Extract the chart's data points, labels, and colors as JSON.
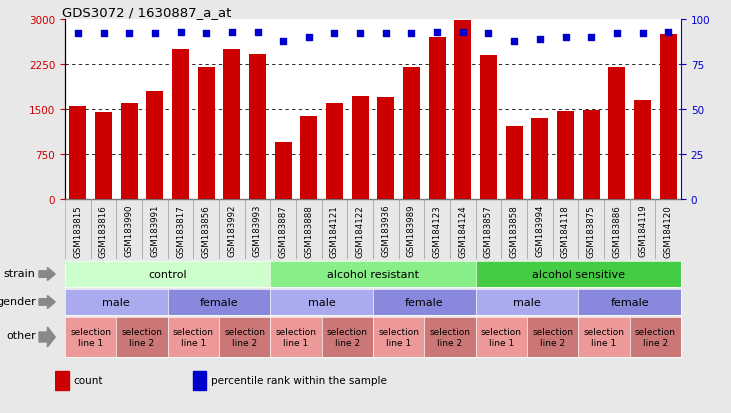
{
  "title": "GDS3072 / 1630887_a_at",
  "samples": [
    "GSM183815",
    "GSM183816",
    "GSM183990",
    "GSM183991",
    "GSM183817",
    "GSM183856",
    "GSM183992",
    "GSM183993",
    "GSM183887",
    "GSM183888",
    "GSM184121",
    "GSM184122",
    "GSM183936",
    "GSM183989",
    "GSM184123",
    "GSM184124",
    "GSM183857",
    "GSM183858",
    "GSM183994",
    "GSM184118",
    "GSM183875",
    "GSM183886",
    "GSM184119",
    "GSM184120"
  ],
  "bar_values": [
    1550,
    1450,
    1600,
    1800,
    2500,
    2200,
    2500,
    2420,
    950,
    1380,
    1600,
    1720,
    1700,
    2200,
    2700,
    2980,
    2400,
    1220,
    1350,
    1470,
    1480,
    2200,
    1650,
    2750
  ],
  "percentile_values": [
    92,
    92,
    92,
    92,
    93,
    92,
    93,
    93,
    88,
    90,
    92,
    92,
    92,
    92,
    93,
    93,
    92,
    88,
    89,
    90,
    90,
    92,
    92,
    93
  ],
  "bar_color": "#cc0000",
  "percentile_color": "#0000cc",
  "ylim_left": [
    0,
    3000
  ],
  "ylim_right": [
    0,
    100
  ],
  "yticks_left": [
    0,
    750,
    1500,
    2250,
    3000
  ],
  "yticks_right": [
    0,
    25,
    50,
    75,
    100
  ],
  "grid_lines": [
    750,
    1500,
    2250
  ],
  "strain_groups": [
    {
      "label": "control",
      "start": 0,
      "end": 8,
      "color": "#ccffcc"
    },
    {
      "label": "alcohol resistant",
      "start": 8,
      "end": 16,
      "color": "#88ee88"
    },
    {
      "label": "alcohol sensitive",
      "start": 16,
      "end": 24,
      "color": "#44cc44"
    }
  ],
  "gender_groups": [
    {
      "label": "male",
      "start": 0,
      "end": 4,
      "color": "#aaaaee"
    },
    {
      "label": "female",
      "start": 4,
      "end": 8,
      "color": "#8888dd"
    },
    {
      "label": "male",
      "start": 8,
      "end": 12,
      "color": "#aaaaee"
    },
    {
      "label": "female",
      "start": 12,
      "end": 16,
      "color": "#8888dd"
    },
    {
      "label": "male",
      "start": 16,
      "end": 20,
      "color": "#aaaaee"
    },
    {
      "label": "female",
      "start": 20,
      "end": 24,
      "color": "#8888dd"
    }
  ],
  "other_groups": [
    {
      "label": "selection\nline 1",
      "start": 0,
      "end": 2,
      "color": "#ee9999"
    },
    {
      "label": "selection\nline 2",
      "start": 2,
      "end": 4,
      "color": "#cc7777"
    },
    {
      "label": "selection\nline 1",
      "start": 4,
      "end": 6,
      "color": "#ee9999"
    },
    {
      "label": "selection\nline 2",
      "start": 6,
      "end": 8,
      "color": "#cc7777"
    },
    {
      "label": "selection\nline 1",
      "start": 8,
      "end": 10,
      "color": "#ee9999"
    },
    {
      "label": "selection\nline 2",
      "start": 10,
      "end": 12,
      "color": "#cc7777"
    },
    {
      "label": "selection\nline 1",
      "start": 12,
      "end": 14,
      "color": "#ee9999"
    },
    {
      "label": "selection\nline 2",
      "start": 14,
      "end": 16,
      "color": "#cc7777"
    },
    {
      "label": "selection\nline 1",
      "start": 16,
      "end": 18,
      "color": "#ee9999"
    },
    {
      "label": "selection\nline 2",
      "start": 18,
      "end": 20,
      "color": "#cc7777"
    },
    {
      "label": "selection\nline 1",
      "start": 20,
      "end": 22,
      "color": "#ee9999"
    },
    {
      "label": "selection\nline 2",
      "start": 22,
      "end": 24,
      "color": "#cc7777"
    }
  ],
  "xtick_bg": "#d8d8d8",
  "legend_items": [
    {
      "label": "count",
      "color": "#cc0000"
    },
    {
      "label": "percentile rank within the sample",
      "color": "#0000cc"
    }
  ],
  "background_color": "#e8e8e8",
  "plot_bg": "#ffffff"
}
